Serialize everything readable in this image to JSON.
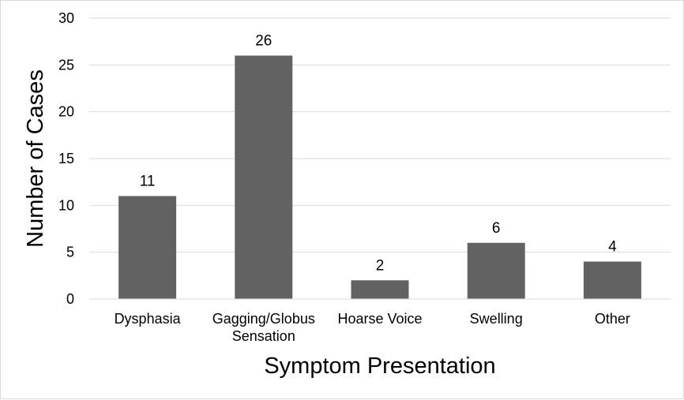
{
  "chart_data": {
    "type": "bar",
    "categories": [
      "Dysphasia",
      "Gagging/Globus Sensation",
      "Hoarse Voice",
      "Swelling",
      "Other"
    ],
    "category_lines": [
      [
        "Dysphasia"
      ],
      [
        "Gagging/Globus",
        "Sensation"
      ],
      [
        "Hoarse Voice"
      ],
      [
        "Swelling"
      ],
      [
        "Other"
      ]
    ],
    "values": [
      11,
      26,
      2,
      6,
      4
    ],
    "xlabel": "Symptom Presentation",
    "ylabel": "Number of Cases",
    "ylim": [
      0,
      30
    ],
    "yticks": [
      0,
      5,
      10,
      15,
      20,
      25,
      30
    ],
    "grid": true,
    "data_labels": true,
    "colors": {
      "bar": "#626262",
      "grid": "#d9d9d9",
      "text": "#000000"
    }
  }
}
